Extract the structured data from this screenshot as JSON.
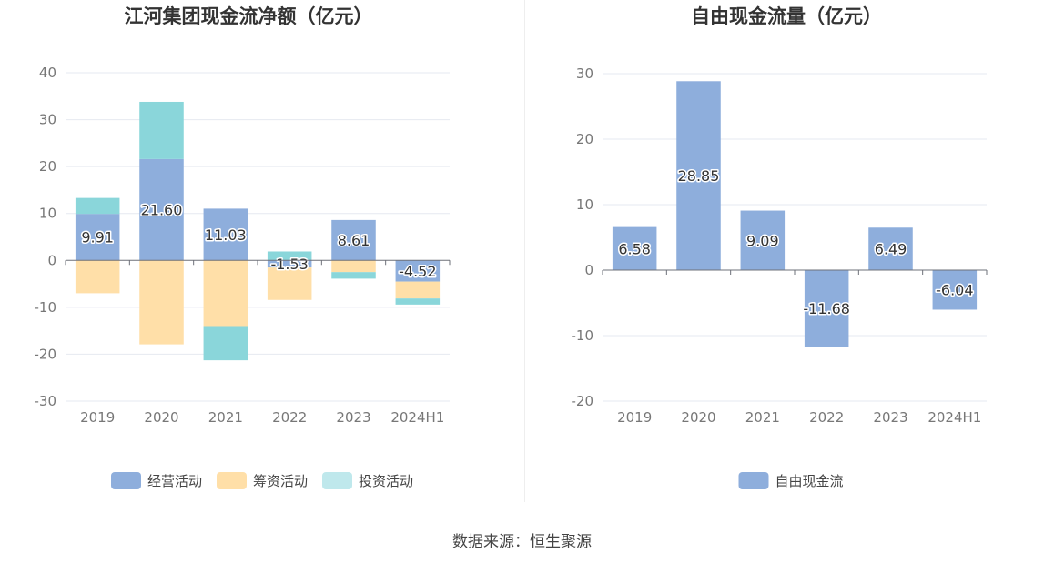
{
  "chart_data": [
    {
      "type": "bar",
      "stacked": true,
      "title": "江河集团现金流净额（亿元）",
      "categories": [
        "2019",
        "2020",
        "2021",
        "2022",
        "2023",
        "2024H1"
      ],
      "ylim": [
        -30,
        40
      ],
      "yticks": [
        40,
        30,
        20,
        10,
        0,
        -10,
        -20,
        -30
      ],
      "grid": true,
      "legend_position": "bottom",
      "series": [
        {
          "name": "经营活动",
          "color": "#8eaedc",
          "values": [
            9.91,
            21.6,
            11.03,
            -1.53,
            8.61,
            -4.52
          ],
          "labels": [
            "9.91",
            "21.60",
            "11.03",
            "-1.53",
            "8.61",
            "-4.52"
          ]
        },
        {
          "name": "筹资活动",
          "color": "#ffdfa8",
          "values": [
            -7.0,
            -17.9,
            -14.0,
            -6.9,
            -2.5,
            -3.6
          ]
        },
        {
          "name": "投资活动",
          "color": "#8ad6da",
          "values": [
            3.4,
            12.2,
            -7.3,
            1.9,
            -1.4,
            -1.3
          ]
        }
      ],
      "legend_colors": [
        "#8eaedc",
        "#ffdfa8",
        "#bfe8ec"
      ]
    },
    {
      "type": "bar",
      "title": "自由现金流量（亿元）",
      "categories": [
        "2019",
        "2020",
        "2021",
        "2022",
        "2023",
        "2024H1"
      ],
      "ylim": [
        -20,
        30
      ],
      "yticks": [
        30,
        20,
        10,
        0,
        -10,
        -20
      ],
      "grid": true,
      "legend_position": "bottom",
      "series": [
        {
          "name": "自由现金流",
          "color": "#8eaedc",
          "values": [
            6.58,
            28.85,
            9.09,
            -11.68,
            6.49,
            -6.04
          ],
          "labels": [
            "6.58",
            "28.85",
            "9.09",
            "-11.68",
            "6.49",
            "-6.04"
          ]
        }
      ]
    }
  ],
  "source": "数据来源：恒生聚源"
}
